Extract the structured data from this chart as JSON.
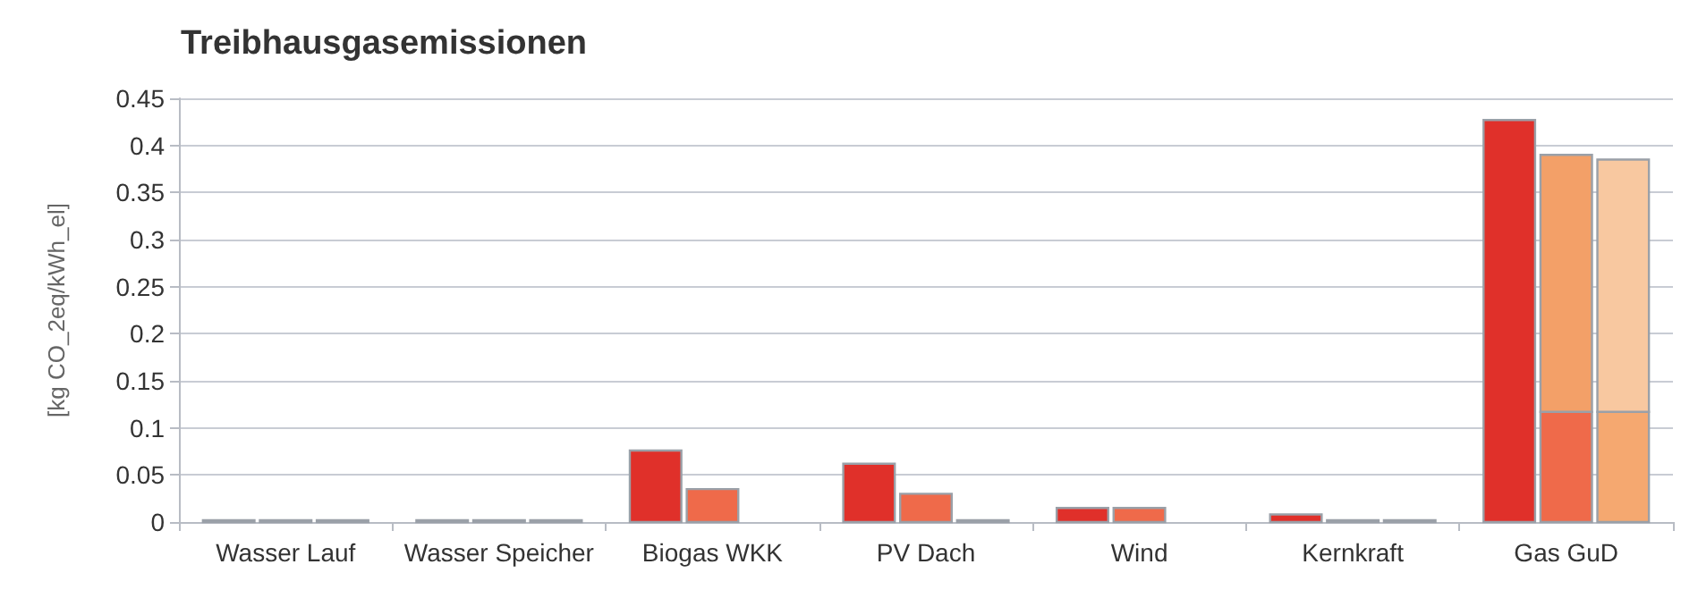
{
  "chart_data": {
    "type": "bar",
    "title": "Treibhausgasemissionen",
    "ylabel": "[kg CO_2eq/kWh_el]",
    "categories": [
      "Wasser Lauf",
      "Wasser Speicher",
      "Biogas WKK",
      "PV Dach",
      "Wind",
      "Kernkraft",
      "Gas GuD"
    ],
    "series": [
      {
        "color": "#e0302a",
        "values": [
          0.002,
          0.002,
          0.076,
          0.062,
          0.015,
          0.008,
          0.427
        ]
      },
      {
        "color": "#ef6a4a",
        "values": [
          0.002,
          0.002,
          0.035,
          0.03,
          0.015,
          0.002,
          0.117
        ]
      },
      {
        "color": "#f3a068",
        "base": [
          null,
          null,
          null,
          null,
          null,
          null,
          0.117
        ],
        "values": [
          null,
          null,
          null,
          null,
          null,
          null,
          0.273
        ]
      },
      {
        "color": "#f5a870",
        "values": [
          0.002,
          0.002,
          null,
          0.002,
          null,
          0.002,
          0.117
        ]
      },
      {
        "color": "#f8c8a0",
        "base": [
          null,
          null,
          null,
          null,
          null,
          null,
          0.117
        ],
        "values": [
          null,
          null,
          null,
          null,
          null,
          null,
          0.268
        ]
      }
    ],
    "ylim": [
      0,
      0.45
    ],
    "yticks": [
      0,
      0.05,
      0.1,
      0.15,
      0.2,
      0.25,
      0.3,
      0.35,
      0.4,
      0.45
    ],
    "grid": "y"
  }
}
